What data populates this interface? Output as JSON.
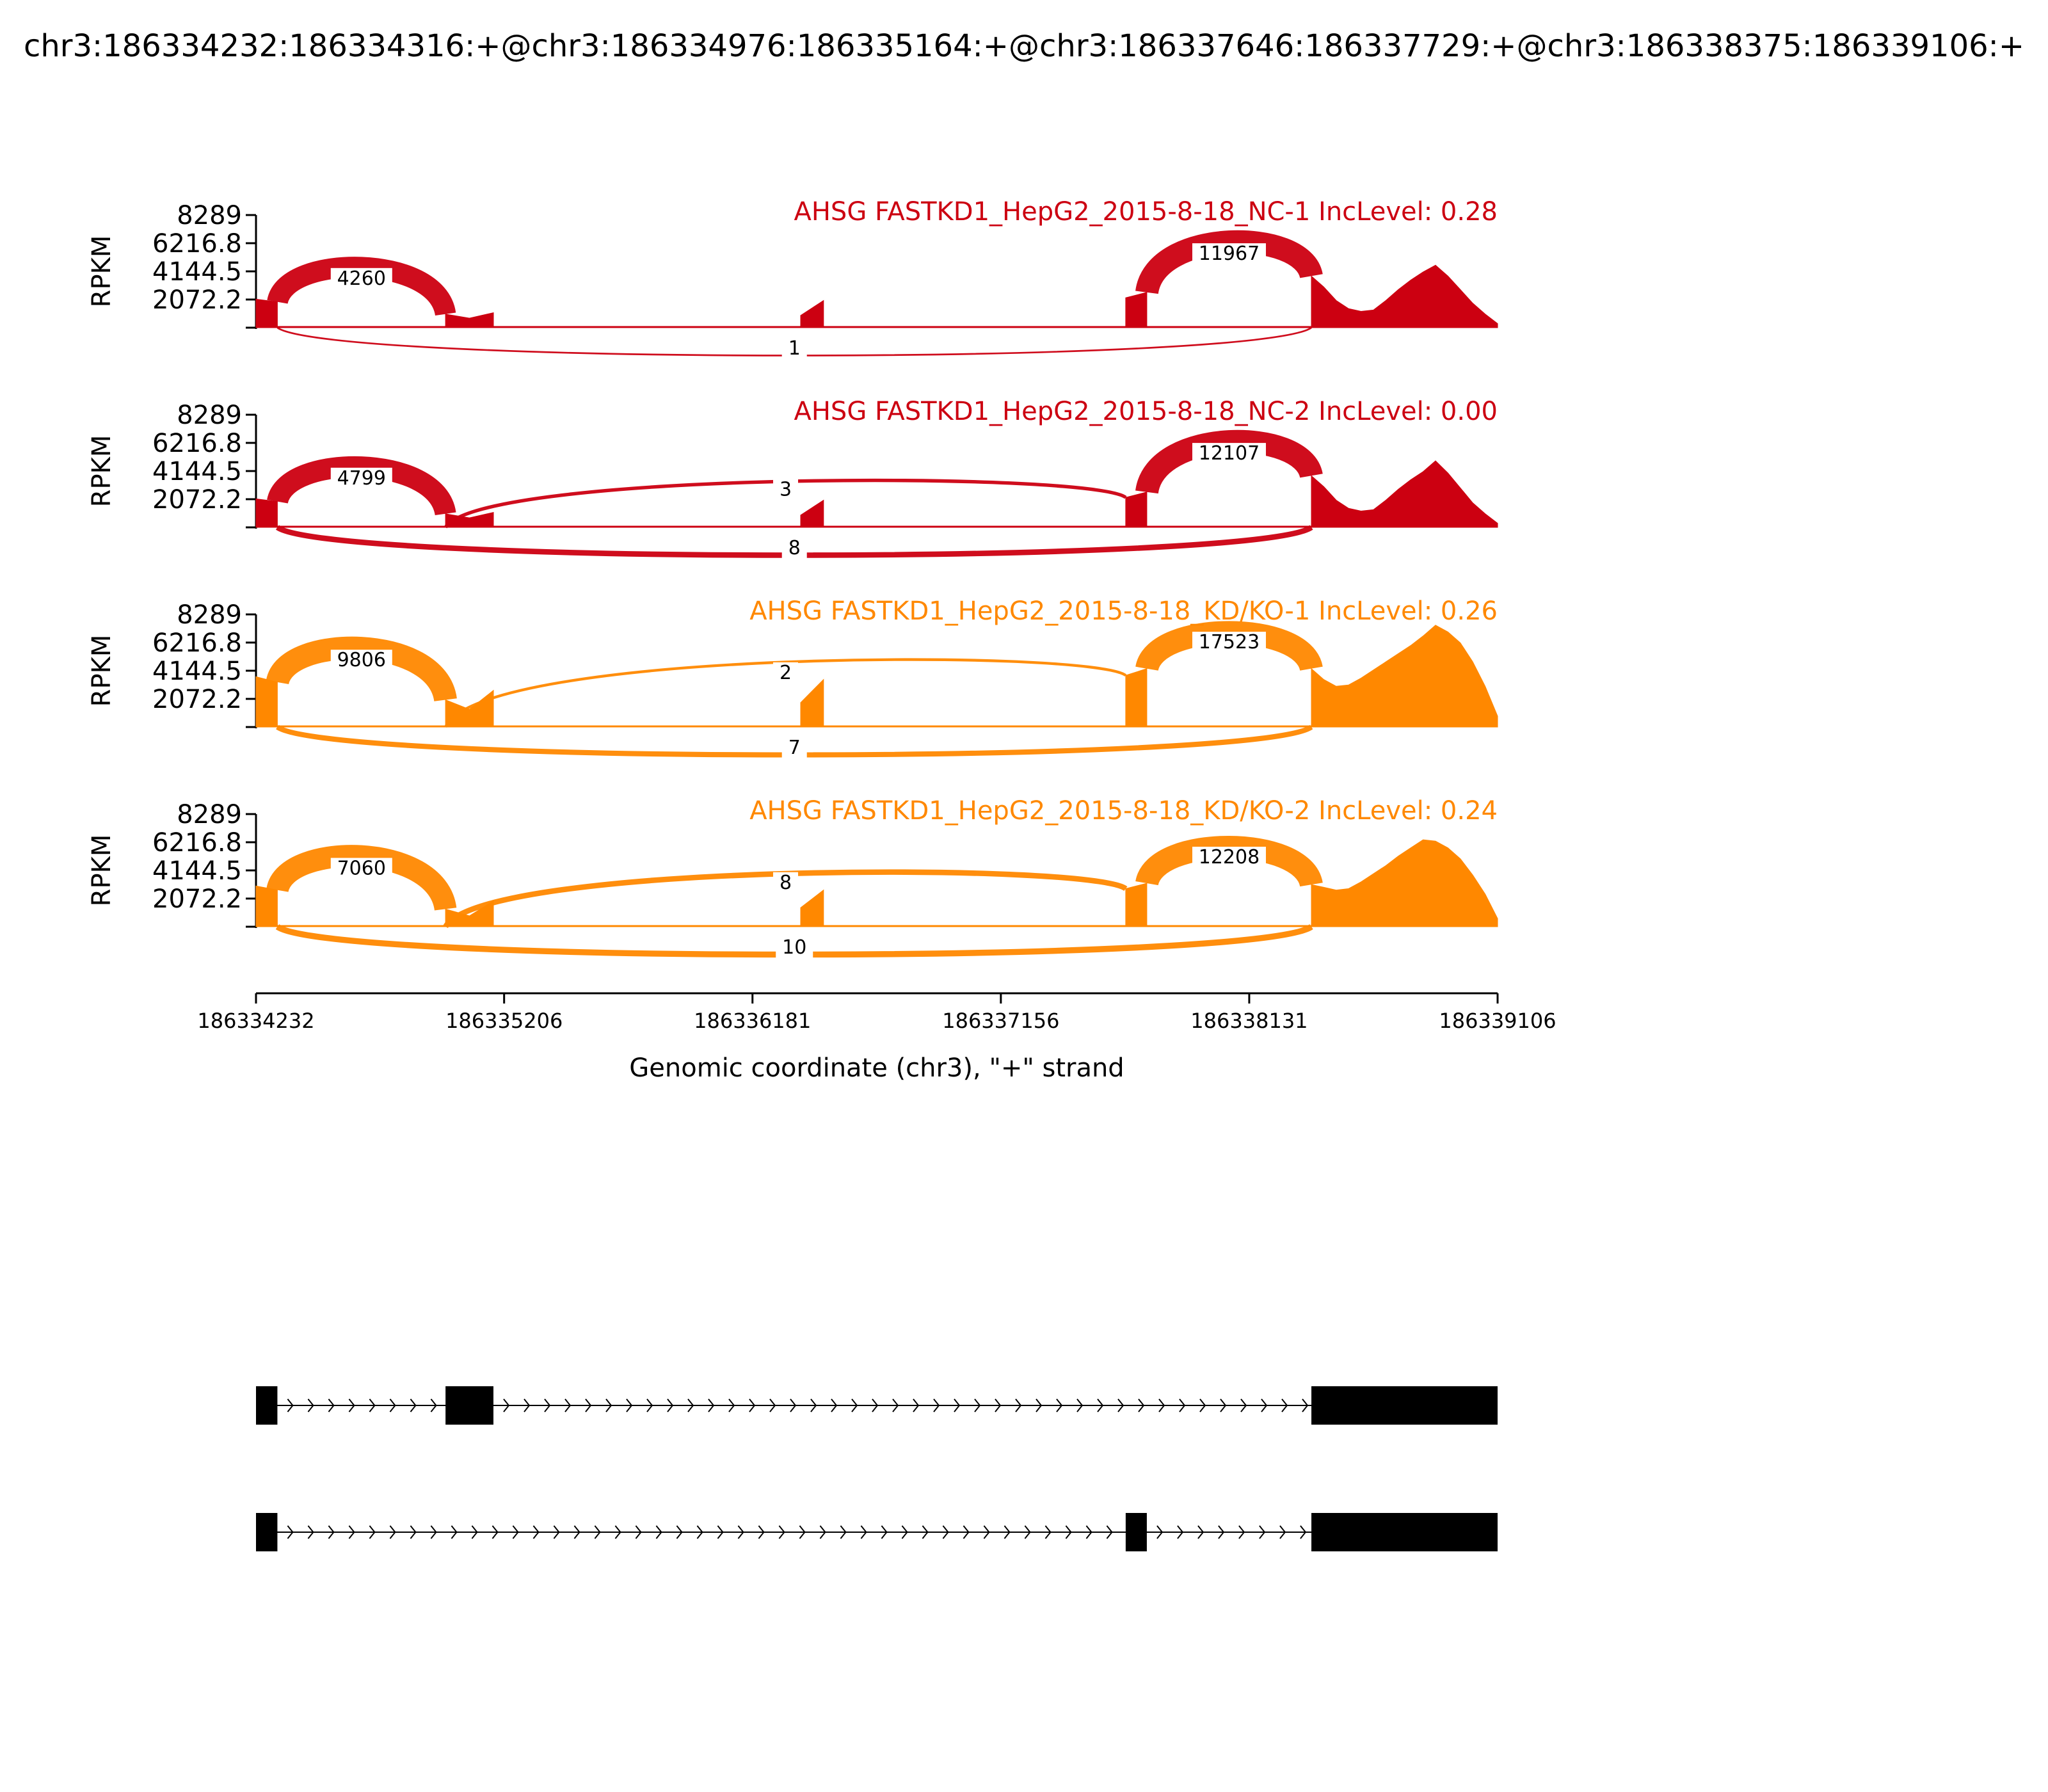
{
  "chart_data": {
    "type": "area",
    "title": "chr3:186334232:186334316:+@chr3:186334976:186335164:+@chr3:186337646:186337729:+@chr3:186338375:186339106:+",
    "xlabel": "Genomic coordinate (chr3), \"+\" strand",
    "ylabel": "RPKM",
    "xlim": [
      186334232,
      186339106
    ],
    "ylim": [
      0,
      8289
    ],
    "x_ticks": [
      "186334232",
      "186335206",
      "186336181",
      "186337156",
      "186338131",
      "186339106"
    ],
    "y_ticks": [
      "8289",
      "6216.8",
      "4144.5",
      "2072.2"
    ],
    "exons": [
      {
        "start": 186334232,
        "end": 186334316
      },
      {
        "start": 186334976,
        "end": 186335164
      },
      {
        "start": 186336370,
        "end": 186336460
      },
      {
        "start": 186337646,
        "end": 186337729
      },
      {
        "start": 186338375,
        "end": 186339106
      }
    ],
    "series": [
      {
        "name": "AHSG FASTKD1_HepG2_2015-8-18_NC-1 IncLevel: 0.28",
        "color": "#cc0011",
        "coverage": {
          "exon1": [
            2100,
            1900
          ],
          "exon2": [
            1000,
            700,
            1100
          ],
          "exon3": [
            900,
            2000
          ],
          "exon4": [
            2200,
            2600
          ],
          "exon5": [
            3800,
            3000,
            2000,
            1400,
            1200,
            1300,
            2000,
            2800,
            3500,
            4100,
            4600,
            3800,
            2800,
            1800,
            1000,
            300
          ]
        },
        "junctions": [
          {
            "start": 186334316,
            "end": 186334976,
            "count": "4260",
            "side": "above"
          },
          {
            "start": 186337729,
            "end": 186338375,
            "count": "11967",
            "side": "above"
          },
          {
            "start": 186334316,
            "end": 186338375,
            "count": "1",
            "side": "below"
          }
        ]
      },
      {
        "name": "AHSG FASTKD1_HepG2_2015-8-18_NC-2 IncLevel: 0.00",
        "color": "#cc0011",
        "coverage": {
          "exon1": [
            2100,
            1900
          ],
          "exon2": [
            1000,
            700,
            1100
          ],
          "exon3": [
            900,
            2000
          ],
          "exon4": [
            2200,
            2600
          ],
          "exon5": [
            3800,
            3000,
            2000,
            1400,
            1200,
            1300,
            2000,
            2800,
            3500,
            4100,
            4900,
            4000,
            2900,
            1800,
            1000,
            300
          ]
        },
        "junctions": [
          {
            "start": 186334316,
            "end": 186334976,
            "count": "4799",
            "side": "above"
          },
          {
            "start": 186337729,
            "end": 186338375,
            "count": "12107",
            "side": "above"
          },
          {
            "start": 186334976,
            "end": 186337646,
            "count": "3",
            "side": "above"
          },
          {
            "start": 186334316,
            "end": 186338375,
            "count": "8",
            "side": "below"
          }
        ]
      },
      {
        "name": "AHSG FASTKD1_HepG2_2015-8-18_KD/KO-1 IncLevel: 0.26",
        "color": "#ff8800",
        "coverage": {
          "exon1": [
            3700,
            3300
          ],
          "exon2": [
            2000,
            1300,
            2700
          ],
          "exon3": [
            1800,
            3500
          ],
          "exon4": [
            3800,
            4300
          ],
          "exon5": [
            4300,
            3500,
            3000,
            3100,
            3600,
            4200,
            4800,
            5400,
            6000,
            6700,
            7500,
            7000,
            6200,
            4800,
            3000,
            800
          ]
        },
        "junctions": [
          {
            "start": 186334316,
            "end": 186334976,
            "count": "9806",
            "side": "above"
          },
          {
            "start": 186337729,
            "end": 186338375,
            "count": "17523",
            "side": "above"
          },
          {
            "start": 186334976,
            "end": 186337646,
            "count": "2",
            "side": "above"
          },
          {
            "start": 186334316,
            "end": 186338375,
            "count": "7",
            "side": "below"
          }
        ]
      },
      {
        "name": "AHSG FASTKD1_HepG2_2015-8-18_KD/KO-2 IncLevel: 0.24",
        "color": "#ff8800",
        "coverage": {
          "exon1": [
            3000,
            2700
          ],
          "exon2": [
            1300,
            800,
            1900
          ],
          "exon3": [
            1400,
            2700
          ],
          "exon4": [
            2800,
            3200
          ],
          "exon5": [
            3100,
            2900,
            2700,
            2800,
            3300,
            3900,
            4500,
            5200,
            5800,
            6400,
            6300,
            5800,
            5000,
            3800,
            2400,
            600
          ]
        },
        "junctions": [
          {
            "start": 186334316,
            "end": 186334976,
            "count": "7060",
            "side": "above"
          },
          {
            "start": 186337729,
            "end": 186338375,
            "count": "12208",
            "side": "above"
          },
          {
            "start": 186334976,
            "end": 186337646,
            "count": "8",
            "side": "above"
          },
          {
            "start": 186334316,
            "end": 186338375,
            "count": "10",
            "side": "below"
          }
        ]
      }
    ],
    "transcripts": [
      {
        "exons": [
          [
            186334232,
            186334316
          ],
          [
            186334976,
            186335164
          ],
          [
            186338375,
            186339106
          ]
        ]
      },
      {
        "exons": [
          [
            186334232,
            186334316
          ],
          [
            186337646,
            186337729
          ],
          [
            186338375,
            186339106
          ]
        ]
      }
    ]
  }
}
